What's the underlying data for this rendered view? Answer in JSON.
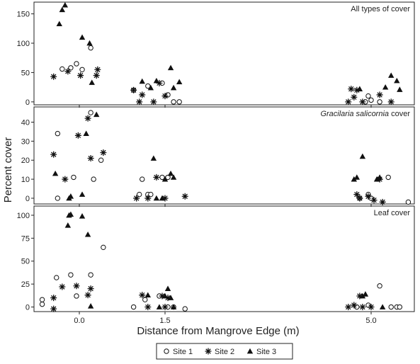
{
  "chart_data": {
    "type": "scatter",
    "ylabel": "Percent cover",
    "xlabel": "Distance from Mangrove Edge (m)",
    "x_categories": [
      "0.0",
      "1.5",
      "5.0"
    ],
    "legend": {
      "placement": "bottom-center",
      "entries": [
        {
          "name": "Site 1",
          "marker": "circle"
        },
        {
          "name": "Site 2",
          "marker": "asterisk"
        },
        {
          "name": "Site 3",
          "marker": "triangle"
        }
      ]
    },
    "panels": [
      {
        "title": "All types of cover",
        "title_italic": "",
        "title_rest": "",
        "ylim": [
          -5,
          170
        ],
        "yticks": [
          0,
          50,
          100,
          150
        ],
        "series": [
          {
            "name": "Site 1",
            "points": [
              [
                -0.3,
                56
              ],
              [
                -0.15,
                58
              ],
              [
                -0.05,
                65
              ],
              [
                0.05,
                55
              ],
              [
                0.2,
                92
              ],
              [
                0.95,
                20
              ],
              [
                1.2,
                27
              ],
              [
                1.45,
                32
              ],
              [
                1.55,
                12
              ],
              [
                1.65,
                0
              ],
              [
                1.75,
                0
              ],
              [
                4.9,
                0
              ],
              [
                4.95,
                10
              ],
              [
                5.0,
                3
              ],
              [
                5.15,
                0
              ]
            ]
          },
          {
            "name": "Site 2",
            "points": [
              [
                -0.45,
                43
              ],
              [
                -0.2,
                52
              ],
              [
                0.02,
                45
              ],
              [
                0.3,
                45
              ],
              [
                0.32,
                55
              ],
              [
                0.95,
                20
              ],
              [
                1.05,
                0
              ],
              [
                1.1,
                12
              ],
              [
                1.3,
                0
              ],
              [
                1.4,
                32
              ],
              [
                1.5,
                10
              ],
              [
                4.6,
                0
              ],
              [
                4.65,
                22
              ],
              [
                4.7,
                8
              ],
              [
                4.75,
                20
              ],
              [
                4.85,
                0
              ],
              [
                5.15,
                12
              ],
              [
                5.35,
                0
              ]
            ]
          },
          {
            "name": "Site 3",
            "points": [
              [
                -0.35,
                133
              ],
              [
                -0.3,
                157
              ],
              [
                -0.25,
                165
              ],
              [
                0.05,
                110
              ],
              [
                0.18,
                100
              ],
              [
                0.22,
                33
              ],
              [
                1.1,
                35
              ],
              [
                1.25,
                24
              ],
              [
                1.35,
                36
              ],
              [
                1.6,
                58
              ],
              [
                1.65,
                24
              ],
              [
                1.75,
                34
              ],
              [
                4.8,
                22
              ],
              [
                5.25,
                25
              ],
              [
                5.35,
                45
              ],
              [
                5.45,
                36
              ],
              [
                5.5,
                21
              ]
            ]
          }
        ]
      },
      {
        "title": "",
        "title_italic": "Gracilaria salicornia",
        "title_rest": " cover",
        "ylim": [
          -3,
          48
        ],
        "yticks": [
          0,
          10,
          20,
          30,
          40
        ],
        "series": [
          {
            "name": "Site 1",
            "points": [
              [
                -0.38,
                34
              ],
              [
                -0.38,
                0
              ],
              [
                -0.1,
                11
              ],
              [
                0.2,
                45
              ],
              [
                0.25,
                10
              ],
              [
                0.38,
                20
              ],
              [
                1.05,
                2
              ],
              [
                1.1,
                10
              ],
              [
                1.2,
                2
              ],
              [
                1.25,
                2
              ],
              [
                1.45,
                11
              ],
              [
                1.55,
                11
              ],
              [
                4.8,
                0
              ],
              [
                4.95,
                2
              ],
              [
                5.0,
                0
              ],
              [
                5.3,
                11
              ],
              [
                5.65,
                -2
              ]
            ]
          },
          {
            "name": "Site 2",
            "points": [
              [
                -0.45,
                23
              ],
              [
                -0.25,
                10
              ],
              [
                -0.02,
                33
              ],
              [
                0.15,
                42
              ],
              [
                0.2,
                21
              ],
              [
                0.42,
                24
              ],
              [
                1.0,
                0
              ],
              [
                1.2,
                0
              ],
              [
                1.35,
                11
              ],
              [
                1.5,
                0
              ],
              [
                1.85,
                1
              ],
              [
                4.75,
                2
              ],
              [
                4.8,
                0
              ],
              [
                4.95,
                1
              ],
              [
                5.05,
                -1
              ],
              [
                5.15,
                10
              ],
              [
                5.2,
                -2
              ]
            ]
          },
          {
            "name": "Site 3",
            "points": [
              [
                -0.42,
                13
              ],
              [
                -0.18,
                0
              ],
              [
                -0.15,
                1
              ],
              [
                0.05,
                2
              ],
              [
                0.12,
                34
              ],
              [
                0.3,
                44
              ],
              [
                1.3,
                21
              ],
              [
                1.5,
                10
              ],
              [
                1.6,
                13
              ],
              [
                1.65,
                11
              ],
              [
                1.45,
                0
              ],
              [
                1.35,
                0
              ],
              [
                4.7,
                10
              ],
              [
                4.75,
                11
              ],
              [
                4.85,
                22
              ],
              [
                5.1,
                10
              ],
              [
                5.15,
                11
              ]
            ]
          }
        ]
      },
      {
        "title": "Leaf cover",
        "title_italic": "",
        "title_rest": "",
        "ylim": [
          -5,
          110
        ],
        "yticks": [
          0,
          25,
          50,
          75,
          100
        ],
        "series": [
          {
            "name": "Site 1",
            "points": [
              [
                -0.65,
                8
              ],
              [
                -0.65,
                3
              ],
              [
                -0.4,
                32
              ],
              [
                -0.15,
                35
              ],
              [
                -0.05,
                12
              ],
              [
                0.2,
                35
              ],
              [
                0.42,
                65
              ],
              [
                0.95,
                0
              ],
              [
                1.15,
                8
              ],
              [
                1.4,
                12
              ],
              [
                1.55,
                0
              ],
              [
                1.65,
                0
              ],
              [
                1.85,
                -2
              ],
              [
                4.75,
                0
              ],
              [
                4.95,
                2
              ],
              [
                5.15,
                23
              ],
              [
                5.35,
                0
              ],
              [
                5.45,
                0
              ],
              [
                5.5,
                0
              ]
            ]
          },
          {
            "name": "Site 2",
            "points": [
              [
                -0.45,
                10
              ],
              [
                -0.45,
                -2
              ],
              [
                -0.3,
                22
              ],
              [
                -0.05,
                23
              ],
              [
                0.15,
                13
              ],
              [
                0.2,
                20
              ],
              [
                1.1,
                13
              ],
              [
                1.2,
                0
              ],
              [
                1.45,
                12
              ],
              [
                1.5,
                0
              ],
              [
                1.55,
                10
              ],
              [
                4.6,
                0
              ],
              [
                4.7,
                2
              ],
              [
                4.8,
                12
              ],
              [
                4.85,
                0
              ],
              [
                5.0,
                0
              ]
            ]
          },
          {
            "name": "Site 3",
            "points": [
              [
                -0.2,
                89
              ],
              [
                -0.18,
                100
              ],
              [
                -0.15,
                101
              ],
              [
                0.05,
                99
              ],
              [
                0.15,
                79
              ],
              [
                0.2,
                1
              ],
              [
                1.2,
                13
              ],
              [
                1.4,
                0
              ],
              [
                1.5,
                12
              ],
              [
                1.55,
                20
              ],
              [
                1.6,
                10
              ],
              [
                1.65,
                0
              ],
              [
                4.85,
                12
              ],
              [
                4.9,
                14
              ],
              [
                5.2,
                0
              ]
            ]
          }
        ]
      }
    ]
  }
}
